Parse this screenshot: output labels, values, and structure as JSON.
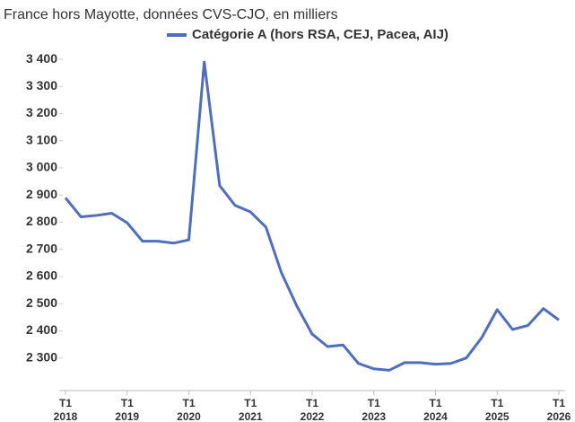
{
  "chart_data": {
    "type": "line",
    "subtitle": "France hors Mayotte, données CVS-CJO, en milliers",
    "categories": [
      "T1",
      null,
      null,
      null,
      "T1",
      null,
      null,
      null,
      "T1",
      null,
      null,
      null,
      "T1",
      null,
      null,
      null,
      "T1",
      null,
      null,
      null,
      "T1",
      null,
      null,
      null,
      "T1",
      null,
      null,
      null,
      "T1",
      null,
      null,
      null,
      "T1"
    ],
    "category_years": [
      "2018",
      null,
      null,
      null,
      "2019",
      null,
      null,
      null,
      "2020",
      null,
      null,
      null,
      "2021",
      null,
      null,
      null,
      "2022",
      null,
      null,
      null,
      "2023",
      null,
      null,
      null,
      "2024",
      null,
      null,
      null,
      "2025",
      null,
      null,
      null,
      "2026"
    ],
    "series": [
      {
        "name": "Catégorie A (hors RSA, CEJ, Pacea, AIJ)",
        "color": "#4f6fbe",
        "values": [
          2890,
          2820,
          2825,
          2833,
          2798,
          2730,
          2730,
          2723,
          2735,
          3390,
          2935,
          2862,
          2838,
          2782,
          2615,
          2492,
          2388,
          2342,
          2348,
          2280,
          2260,
          2255,
          2283,
          2283,
          2277,
          2280,
          2300,
          2375,
          2478,
          2405,
          2420,
          2482,
          2440
        ]
      }
    ],
    "ylim": [
      2180,
      3420
    ],
    "yticks": [
      {
        "value": 2300,
        "label": "2 300"
      },
      {
        "value": 2400,
        "label": "2 400"
      },
      {
        "value": 2500,
        "label": "2 500"
      },
      {
        "value": 2600,
        "label": "2 600"
      },
      {
        "value": 2700,
        "label": "2 700"
      },
      {
        "value": 2800,
        "label": "2 800"
      },
      {
        "value": 2900,
        "label": "2 900"
      },
      {
        "value": 3000,
        "label": "3 000"
      },
      {
        "value": 3100,
        "label": "3 100"
      },
      {
        "value": 3200,
        "label": "3 200"
      },
      {
        "value": 3300,
        "label": "3 300"
      },
      {
        "value": 3400,
        "label": "3 400"
      }
    ],
    "grid": false,
    "legend": "top"
  }
}
